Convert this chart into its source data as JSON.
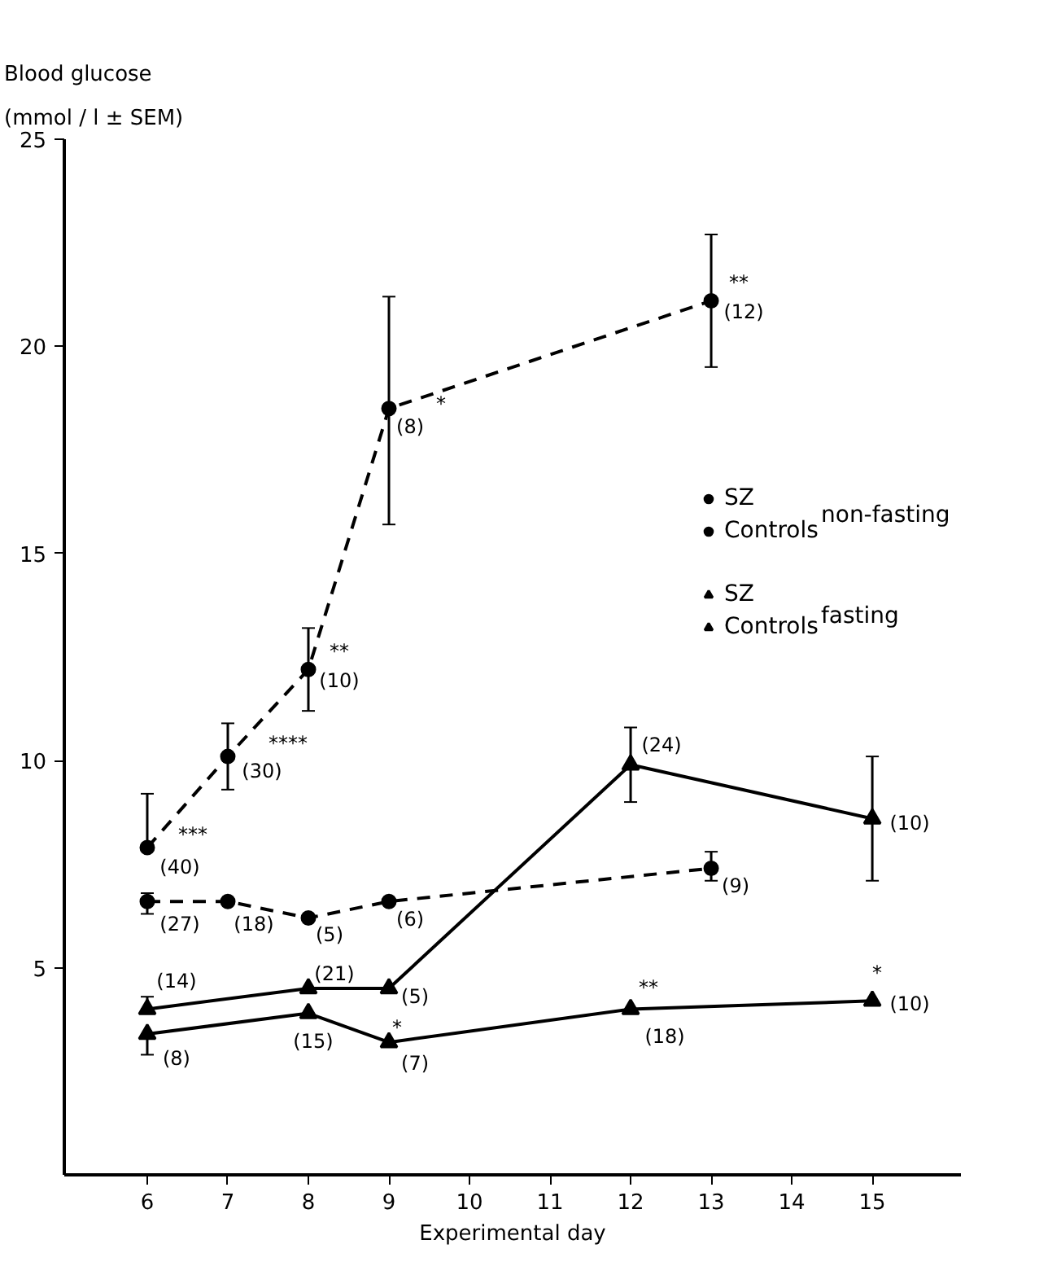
{
  "chart_data": {
    "type": "line",
    "xlabel": "Experimental day",
    "ylabel": "Blood glucose\n(mmol / l ± SEM)",
    "xlim": [
      4.97,
      16.1
    ],
    "ylim": [
      0,
      25
    ],
    "xticks": [
      6,
      7,
      8,
      9,
      10,
      11,
      12,
      13,
      14,
      15
    ],
    "yticks": [
      5,
      10,
      15,
      20,
      25
    ],
    "grid": false,
    "legend": "top right",
    "series": [
      {
        "name": "SZ",
        "color": "#000000",
        "marker": "circle",
        "line_style": "dashed",
        "x": [
          6,
          7,
          8,
          9,
          13
        ],
        "values": [
          7.9,
          10.1,
          12.2,
          18.5,
          21.1
        ],
        "errors": [
          [
            7.9,
            9.2
          ],
          [
            9.3,
            10.9
          ],
          [
            11.2,
            13.2
          ],
          [
            15.7,
            21.2
          ],
          [
            19.5,
            22.7
          ]
        ]
      },
      {
        "name": "Controls",
        "color": "#000000",
        "marker": "circle",
        "line_style": "dashed",
        "x": [
          6,
          7,
          8,
          9,
          13
        ],
        "values": [
          6.6,
          6.6,
          6.2,
          6.6,
          7.4
        ],
        "errors": [
          [
            6.3,
            6.8
          ],
          null,
          null,
          null,
          [
            7.1,
            7.8
          ]
        ]
      },
      {
        "name": "SZ",
        "color": "#000000",
        "marker": "triangle",
        "line_style": "solid",
        "x": [
          6,
          8,
          9,
          12,
          15
        ],
        "values": [
          4.0,
          4.5,
          4.5,
          9.9,
          8.6
        ],
        "errors": [
          [
            4.0,
            4.3
          ],
          null,
          null,
          [
            9.0,
            10.8
          ],
          [
            7.1,
            10.1
          ]
        ]
      },
      {
        "name": "Controls",
        "color": "#000000",
        "marker": "triangle",
        "line_style": "solid",
        "x": [
          6,
          8,
          9,
          12,
          15
        ],
        "values": [
          3.4,
          3.9,
          3.2,
          4.0,
          4.2
        ],
        "errors": [
          [
            2.9,
            3.4
          ],
          null,
          null,
          null,
          null
        ]
      }
    ],
    "annotations": [
      "non-fasting",
      "fasting",
      {
        "text": "(40)",
        "x": 6,
        "y": 7.9
      },
      {
        "text": "***",
        "x": 6,
        "y": 7.9
      },
      {
        "text": "(30)",
        "x": 7,
        "y": 10.1
      },
      {
        "text": "****",
        "x": 7,
        "y": 10.1
      },
      {
        "text": "(10)",
        "x": 8,
        "y": 12.2
      },
      {
        "text": "**",
        "x": 8,
        "y": 12.2
      },
      {
        "text": "(8)",
        "x": 9,
        "y": 18.5
      },
      {
        "text": "*",
        "x": 9,
        "y": 18.5
      },
      {
        "text": "(12)",
        "x": 13,
        "y": 21.1
      },
      {
        "text": "**",
        "x": 13,
        "y": 21.1
      },
      {
        "text": "(27)",
        "x": 6,
        "y": 6.6
      },
      {
        "text": "(18)",
        "x": 7,
        "y": 6.6
      },
      {
        "text": "(5)",
        "x": 8,
        "y": 6.2
      },
      {
        "text": "(6)",
        "x": 9,
        "y": 6.6
      },
      {
        "text": "(9)",
        "x": 13,
        "y": 7.4
      },
      {
        "text": "(14)",
        "x": 6,
        "y": 4.0
      },
      {
        "text": "(21)",
        "x": 8,
        "y": 4.5
      },
      {
        "text": "(5)",
        "x": 9,
        "y": 4.5
      },
      {
        "text": "(24)",
        "x": 12,
        "y": 9.9
      },
      {
        "text": "(10)",
        "x": 15,
        "y": 8.6
      },
      {
        "text": "(8)",
        "x": 6,
        "y": 3.4
      },
      {
        "text": "(15)",
        "x": 8,
        "y": 3.9
      },
      {
        "text": "(7)",
        "x": 9,
        "y": 3.2
      },
      {
        "text": "*",
        "x": 9,
        "y": 3.2
      },
      {
        "text": "**",
        "x": 12,
        "y": 4.0
      },
      {
        "text": "(18)",
        "x": 12,
        "y": 4.0
      },
      {
        "text": "*",
        "x": 15,
        "y": 4.2
      },
      {
        "text": "(10)",
        "x": 15,
        "y": 4.2
      }
    ]
  }
}
